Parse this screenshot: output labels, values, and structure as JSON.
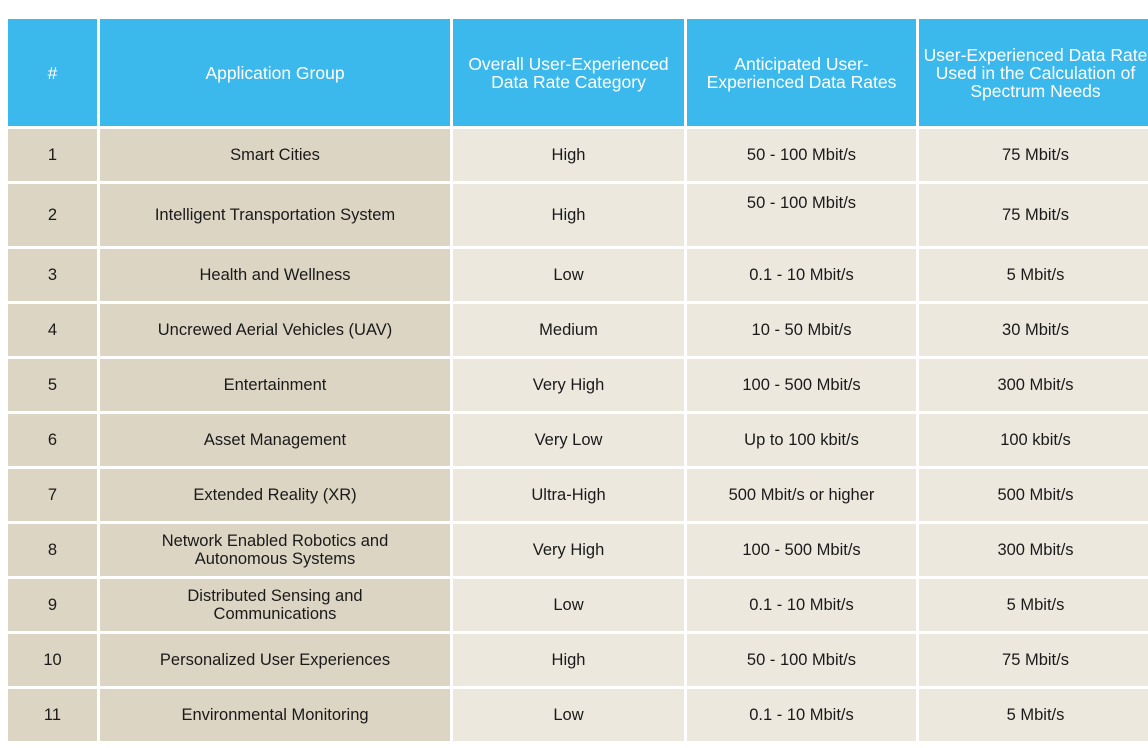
{
  "table": {
    "headers": [
      "#",
      "Application Group",
      "Overall User-Experienced Data Rate Category",
      "Anticipated User-Experienced Data Rates",
      "User-Experienced Data Rate Used in the Calculation of Spectrum Needs"
    ],
    "rows": [
      [
        "1",
        "Smart Cities",
        "High",
        "50 - 100 Mbit/s",
        "75 Mbit/s"
      ],
      [
        "2",
        "Intelligent Transportation System",
        "High",
        "50 - 100 Mbit/s",
        "75 Mbit/s"
      ],
      [
        "3",
        "Health and Wellness",
        "Low",
        "0.1 - 10 Mbit/s",
        "5 Mbit/s"
      ],
      [
        "4",
        "Uncrewed Aerial Vehicles (UAV)",
        "Medium",
        "10 - 50 Mbit/s",
        "30 Mbit/s"
      ],
      [
        "5",
        "Entertainment",
        "Very High",
        "100 - 500 Mbit/s",
        "300 Mbit/s"
      ],
      [
        "6",
        "Asset Management",
        "Very Low",
        "Up to 100 kbit/s",
        "100 kbit/s"
      ],
      [
        "7",
        "Extended Reality (XR)",
        "Ultra-High",
        "500 Mbit/s or higher",
        "500 Mbit/s"
      ],
      [
        "8",
        "Network Enabled Robotics and Autonomous Systems",
        "Very High",
        "100 - 500 Mbit/s",
        "300 Mbit/s"
      ],
      [
        "9",
        "Distributed Sensing and Communications",
        "Low",
        "0.1 - 10 Mbit/s",
        "5 Mbit/s"
      ],
      [
        "10",
        "Personalized User Experiences",
        "High",
        "50 - 100 Mbit/s",
        "75 Mbit/s"
      ],
      [
        "11",
        "Environmental Monitoring",
        "Low",
        "0.1 - 10 Mbit/s",
        "5 Mbit/s"
      ]
    ]
  },
  "colors": {
    "header_bg": "#3cb9ec",
    "header_text": "#ffffff",
    "label_col_bg": "#ddd5c4",
    "value_col_bg": "#ece8de"
  }
}
